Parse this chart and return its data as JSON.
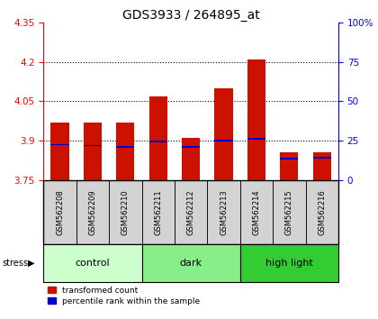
{
  "title": "GDS3933 / 264895_at",
  "samples": [
    "GSM562208",
    "GSM562209",
    "GSM562210",
    "GSM562211",
    "GSM562212",
    "GSM562213",
    "GSM562214",
    "GSM562215",
    "GSM562216"
  ],
  "transformed_counts": [
    3.97,
    3.97,
    3.97,
    4.07,
    3.91,
    4.1,
    4.21,
    3.855,
    3.855
  ],
  "percentile_rank_values": [
    3.885,
    3.882,
    3.878,
    3.898,
    3.876,
    3.901,
    3.908,
    3.833,
    3.836
  ],
  "ylim_left": [
    3.75,
    4.35
  ],
  "ylim_right": [
    0,
    100
  ],
  "yticks_left": [
    3.75,
    3.9,
    4.05,
    4.2,
    4.35
  ],
  "yticks_right": [
    0,
    25,
    50,
    75,
    100
  ],
  "ytick_labels_left": [
    "3.75",
    "3.9",
    "4.05",
    "4.2",
    "4.35"
  ],
  "ytick_labels_right": [
    "0",
    "25",
    "50",
    "75",
    "100%"
  ],
  "groups": [
    {
      "name": "control",
      "indices": [
        0,
        1,
        2
      ],
      "color": "#ccffcc"
    },
    {
      "name": "dark",
      "indices": [
        3,
        4,
        5
      ],
      "color": "#88ee88"
    },
    {
      "name": "high light",
      "indices": [
        6,
        7,
        8
      ],
      "color": "#33cc33"
    }
  ],
  "bar_color": "#cc1100",
  "blue_mark_color": "#0000cc",
  "bar_width": 0.55,
  "base_value": 3.75,
  "sample_bg_color": "#d3d3d3",
  "grid_yticks": [
    3.9,
    4.05,
    4.2
  ]
}
